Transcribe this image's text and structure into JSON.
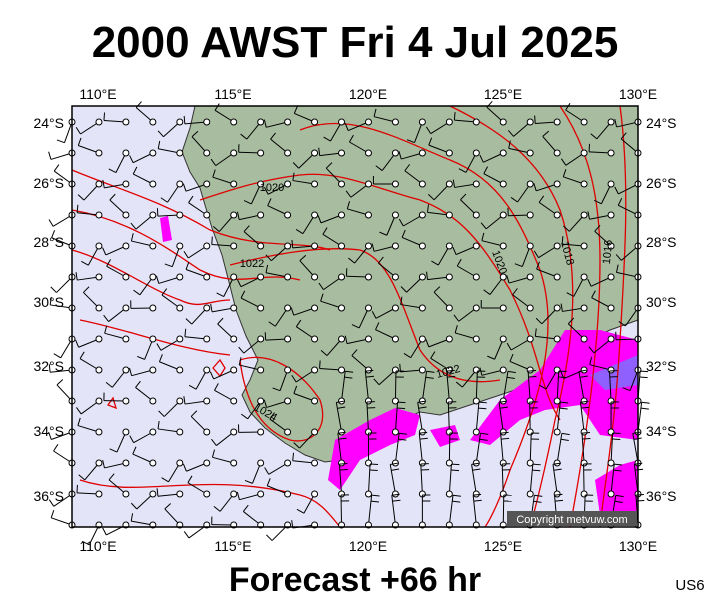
{
  "header": {
    "title": "2000 AWST Fri 4 Jul 2025"
  },
  "axes": {
    "lon_labels": [
      "110°E",
      "115°E",
      "120°E",
      "125°E",
      "130°E"
    ],
    "lat_labels": [
      "24°S",
      "26°S",
      "28°S",
      "30°S",
      "32°S",
      "34°S",
      "36°S"
    ]
  },
  "isobar_labels": [
    "1020",
    "1022",
    "1024",
    "1022",
    "1020",
    "1018",
    "1016"
  ],
  "copyright": "Copyright metvuw.com",
  "footer": {
    "forecast": "Forecast +66 hr",
    "code": "US6"
  }
}
